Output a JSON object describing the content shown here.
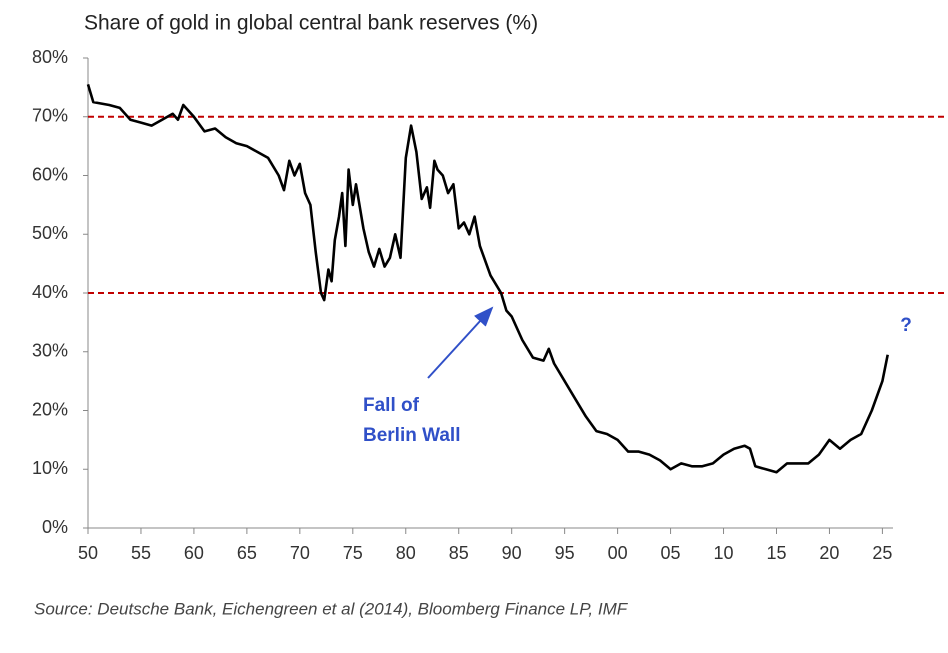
{
  "chart_data": {
    "type": "line",
    "title": "Share of gold in global central bank reserves (%)",
    "source": "Source: Deutsche Bank, Eichengreen et al (2014), Bloomberg Finance LP, IMF",
    "x": [
      1950,
      1950.5,
      1952,
      1953,
      1954,
      1955,
      1956,
      1957,
      1958,
      1958.5,
      1959,
      1959.5,
      1960,
      1961,
      1962,
      1963,
      1964,
      1965,
      1966,
      1967,
      1968,
      1968.5,
      1969,
      1969.5,
      1970,
      1970.5,
      1971,
      1971.5,
      1972,
      1972.3,
      1972.7,
      1973,
      1973.3,
      1973.7,
      1974,
      1974.3,
      1974.6,
      1975,
      1975.3,
      1976,
      1976.5,
      1977,
      1977.5,
      1978,
      1978.5,
      1979,
      1979.5,
      1980,
      1980.5,
      1981,
      1981.5,
      1982,
      1982.3,
      1982.7,
      1983,
      1983.5,
      1984,
      1984.5,
      1985,
      1985.5,
      1986,
      1986.5,
      1987,
      1988,
      1989,
      1989.5,
      1990,
      1991,
      1992,
      1993,
      1993.5,
      1994,
      1995,
      1996,
      1997,
      1998,
      1999,
      2000,
      2001,
      2002,
      2003,
      2004,
      2005,
      2006,
      2007,
      2008,
      2009,
      2010,
      2011,
      2012,
      2012.5,
      2013,
      2014,
      2015,
      2016,
      2017,
      2018,
      2019,
      2020,
      2021,
      2022,
      2023,
      2024,
      2025,
      2025.5
    ],
    "series": [
      {
        "color": "#000000",
        "values": [
          75.5,
          72.5,
          72,
          71.5,
          69.5,
          69,
          68.5,
          69.5,
          70.5,
          69.5,
          72,
          71,
          70,
          67.5,
          68,
          66.5,
          65.5,
          65,
          64,
          63,
          60,
          57.5,
          62.5,
          60,
          62,
          57,
          55,
          47,
          40,
          38.8,
          44,
          42,
          49,
          53,
          57,
          48,
          61,
          55,
          58.5,
          51,
          47,
          44.5,
          47.5,
          44.5,
          46,
          50,
          46,
          63,
          68.5,
          64,
          56,
          58,
          54.5,
          62.5,
          61,
          60,
          57,
          58.5,
          51,
          52,
          50,
          53,
          48,
          43,
          40,
          37,
          36,
          32,
          29,
          28.5,
          30.5,
          28,
          25,
          22,
          19,
          16.5,
          16,
          15,
          13,
          13,
          12.5,
          11.5,
          10,
          11,
          10.5,
          10.5,
          11,
          12.5,
          13.5,
          14,
          13.5,
          10.5,
          10,
          9.5,
          11,
          11,
          11,
          12.5,
          15,
          13.5,
          15,
          16,
          20,
          25,
          29.5
        ]
      }
    ],
    "xlim": [
      1950,
      2026
    ],
    "ylim": [
      0,
      80
    ],
    "xticks": [
      {
        "value": 1950,
        "label": "50"
      },
      {
        "value": 1955,
        "label": "55"
      },
      {
        "value": 1960,
        "label": "60"
      },
      {
        "value": 1965,
        "label": "65"
      },
      {
        "value": 1970,
        "label": "70"
      },
      {
        "value": 1975,
        "label": "75"
      },
      {
        "value": 1980,
        "label": "80"
      },
      {
        "value": 1985,
        "label": "85"
      },
      {
        "value": 1990,
        "label": "90"
      },
      {
        "value": 1995,
        "label": "95"
      },
      {
        "value": 2000,
        "label": "00"
      },
      {
        "value": 2005,
        "label": "05"
      },
      {
        "value": 2010,
        "label": "10"
      },
      {
        "value": 2015,
        "label": "15"
      },
      {
        "value": 2020,
        "label": "20"
      },
      {
        "value": 2025,
        "label": "25"
      }
    ],
    "yticks": [
      {
        "value": 0,
        "label": "0%"
      },
      {
        "value": 10,
        "label": "10%"
      },
      {
        "value": 20,
        "label": "20%"
      },
      {
        "value": 30,
        "label": "30%"
      },
      {
        "value": 40,
        "label": "40%"
      },
      {
        "value": 50,
        "label": "50%"
      },
      {
        "value": 60,
        "label": "60%"
      },
      {
        "value": 70,
        "label": "70%"
      },
      {
        "value": 80,
        "label": "80%"
      }
    ],
    "hlines": [
      70,
      40
    ],
    "hline_color": "#c00000",
    "annotations": [
      {
        "text": [
          "Fall of",
          "Berlin Wall"
        ],
        "color": "#3050c8"
      },
      {
        "text": [
          "?"
        ],
        "color": "#3050c8"
      }
    ]
  }
}
